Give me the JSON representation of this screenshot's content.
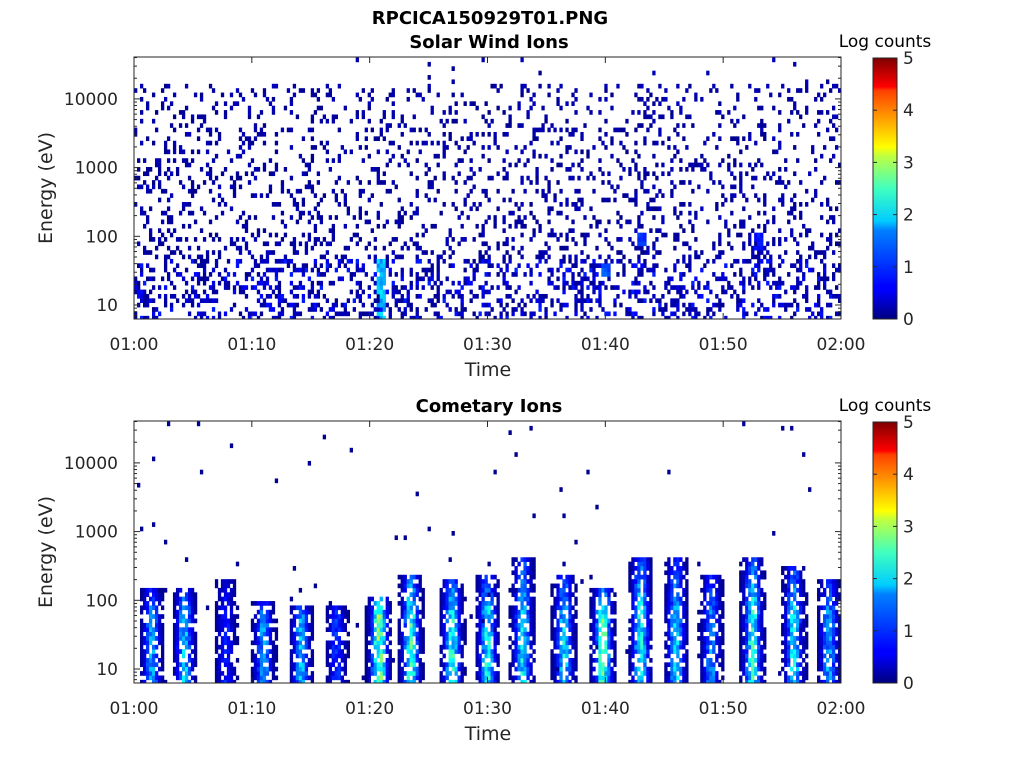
{
  "figure": {
    "title": "RPCICA150929T01.PNG"
  },
  "colorbar": {
    "label": "Log counts",
    "range": [
      0,
      5
    ],
    "ticks": [
      "0",
      "1",
      "2",
      "3",
      "4",
      "5"
    ],
    "colormap": "jet"
  },
  "chart_data": [
    {
      "type": "heatmap",
      "title": "Solar Wind Ions",
      "xlabel": "Time",
      "ylabel": "Energy (eV)",
      "x_range": [
        "01:00",
        "02:00"
      ],
      "x_ticks": [
        "01:00",
        "01:10",
        "01:20",
        "01:30",
        "01:40",
        "01:50",
        "02:00"
      ],
      "y_scale": "log",
      "y_range": [
        6,
        45000
      ],
      "y_ticks": [
        "10",
        "100",
        "1000",
        "10000"
      ],
      "colorbar_label": "Log counts",
      "colorbar_range": [
        0,
        5
      ],
      "description_values": {
        "background_noise": "sparse single counts (log counts ~0-0.3) spread across all energies 6 eV - 20 keV",
        "low_energy_features": [
          {
            "time": "01:21",
            "energy_eV": [
              6,
              45
            ],
            "log_counts": 1.8
          },
          {
            "time": "01:40",
            "energy_eV": [
              25,
              40
            ],
            "log_counts": 1.2
          },
          {
            "time": "01:43",
            "energy_eV": [
              70,
              110
            ],
            "log_counts": 1.0
          },
          {
            "time": "01:53",
            "energy_eV": [
              60,
              110
            ],
            "log_counts": 0.8
          }
        ]
      }
    },
    {
      "type": "heatmap",
      "title": "Cometary Ions",
      "xlabel": "Time",
      "ylabel": "Energy (eV)",
      "x_range": [
        "01:00",
        "02:00"
      ],
      "x_ticks": [
        "01:00",
        "01:10",
        "01:20",
        "01:30",
        "01:40",
        "01:50",
        "02:00"
      ],
      "y_scale": "log",
      "y_range": [
        6,
        45000
      ],
      "y_ticks": [
        "10",
        "100",
        "1000",
        "10000"
      ],
      "colorbar_label": "Log counts",
      "colorbar_range": [
        0,
        5
      ],
      "bursts": [
        {
          "time_min": 1.5,
          "e_top": 150,
          "peak": 1.6
        },
        {
          "time_min": 4.3,
          "e_top": 150,
          "peak": 1.8
        },
        {
          "time_min": 7.8,
          "e_top": 200,
          "peak": 0.9
        },
        {
          "time_min": 11.0,
          "e_top": 100,
          "peak": 1.6
        },
        {
          "time_min": 14.2,
          "e_top": 90,
          "peak": 1.7
        },
        {
          "time_min": 17.2,
          "e_top": 90,
          "peak": 1.0
        },
        {
          "time_min": 20.8,
          "e_top": 120,
          "peak": 2.7
        },
        {
          "time_min": 23.5,
          "e_top": 250,
          "peak": 2.3
        },
        {
          "time_min": 27.0,
          "e_top": 200,
          "peak": 2.2
        },
        {
          "time_min": 30.0,
          "e_top": 250,
          "peak": 2.1
        },
        {
          "time_min": 33.0,
          "e_top": 400,
          "peak": 2.0
        },
        {
          "time_min": 36.5,
          "e_top": 250,
          "peak": 1.9
        },
        {
          "time_min": 39.8,
          "e_top": 150,
          "peak": 2.6
        },
        {
          "time_min": 43.0,
          "e_top": 450,
          "peak": 2.1
        },
        {
          "time_min": 46.0,
          "e_top": 400,
          "peak": 1.9
        },
        {
          "time_min": 49.0,
          "e_top": 250,
          "peak": 1.5
        },
        {
          "time_min": 52.5,
          "e_top": 400,
          "peak": 2.3
        },
        {
          "time_min": 56.0,
          "e_top": 300,
          "peak": 2.0
        },
        {
          "time_min": 59.0,
          "e_top": 200,
          "peak": 1.6
        }
      ]
    }
  ]
}
